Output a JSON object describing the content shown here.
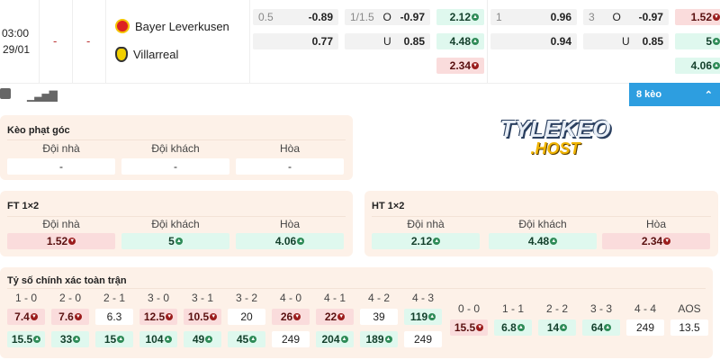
{
  "match": {
    "time": "03:00",
    "date": "29/01",
    "score_home": "-",
    "score_away": "-",
    "home": "Bayer Leverkusen",
    "away": "Villarreal"
  },
  "odds": {
    "c1": {
      "r1_line": "0.5",
      "r1_val": "-0.89",
      "r2_val": "0.77"
    },
    "c2": {
      "r1_line": "1/1.5",
      "r1_side": "O",
      "r1_val": "-0.97",
      "r2_side": "U",
      "r2_val": "0.85"
    },
    "c3": {
      "r1": "2.12",
      "r2": "4.48",
      "r3": "2.34"
    },
    "c4": {
      "r1_line": "1",
      "r1_val": "0.96",
      "r2_val": "0.94"
    },
    "c5": {
      "r1_line": "3",
      "r1_side": "O",
      "r1_val": "-0.97",
      "r2_side": "U",
      "r2_val": "0.85"
    },
    "c6": {
      "r1": "1.52",
      "r2": "5",
      "r3": "4.06"
    }
  },
  "toolbar": {
    "more_label": "8 kèo"
  },
  "logo_text": "TYLEKEO.HOST",
  "colors": {
    "accent": "#2d9ee0",
    "up": "#2e8b57",
    "down": "#9b1c1c",
    "panel": "#fdf1e8"
  },
  "corner": {
    "title": "Kèo phạt góc",
    "labels": [
      "Đội nhà",
      "Đội khách",
      "Hòa"
    ],
    "values": [
      "-",
      "-",
      "-"
    ]
  },
  "ft": {
    "title": "FT 1×2",
    "labels": [
      "Đội nhà",
      "Đội khách",
      "Hòa"
    ],
    "values": [
      "1.52",
      "5",
      "4.06"
    ],
    "trends": [
      "down",
      "up",
      "up"
    ]
  },
  "ht": {
    "title": "HT 1×2",
    "labels": [
      "Đội nhà",
      "Đội khách",
      "Hòa"
    ],
    "values": [
      "2.12",
      "4.48",
      "2.34"
    ],
    "trends": [
      "up",
      "up",
      "down"
    ]
  },
  "correct_score": {
    "title": "Tỷ số chính xác toàn trận",
    "home_cols": [
      {
        "score": "1 - 0",
        "home": "7.4",
        "ht": "down",
        "away": "15.5",
        "at": "up"
      },
      {
        "score": "2 - 0",
        "home": "7.6",
        "ht": "down",
        "away": "33",
        "at": "up"
      },
      {
        "score": "2 - 1",
        "home": "6.3",
        "ht": "",
        "away": "15",
        "at": "up"
      },
      {
        "score": "3 - 0",
        "home": "12.5",
        "ht": "down",
        "away": "104",
        "at": "up"
      },
      {
        "score": "3 - 1",
        "home": "10.5",
        "ht": "down",
        "away": "49",
        "at": "up"
      },
      {
        "score": "3 - 2",
        "home": "20",
        "ht": "",
        "away": "45",
        "at": "up"
      },
      {
        "score": "4 - 0",
        "home": "26",
        "ht": "down",
        "away": "249",
        "at": ""
      },
      {
        "score": "4 - 1",
        "home": "22",
        "ht": "down",
        "away": "204",
        "at": "up"
      },
      {
        "score": "4 - 2",
        "home": "39",
        "ht": "",
        "away": "189",
        "at": "up"
      },
      {
        "score": "4 - 3",
        "home": "119",
        "ht": "up",
        "away": "249",
        "at": ""
      }
    ],
    "draw_cols": [
      {
        "score": "0 - 0",
        "value": "15.5",
        "t": "down"
      },
      {
        "score": "1 - 1",
        "value": "6.8",
        "t": "up"
      },
      {
        "score": "2 - 2",
        "value": "14",
        "t": "up"
      },
      {
        "score": "3 - 3",
        "value": "64",
        "t": "up"
      },
      {
        "score": "4 - 4",
        "value": "249",
        "t": ""
      },
      {
        "score": "AOS",
        "value": "13.5",
        "t": ""
      }
    ]
  }
}
